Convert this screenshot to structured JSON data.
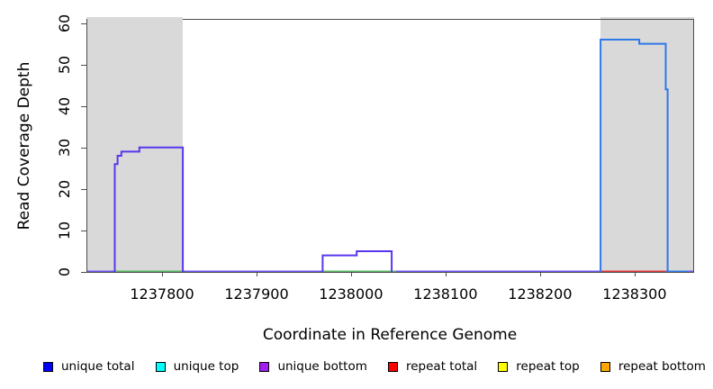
{
  "figure": {
    "background": "#ffffff",
    "frame_color": "#4d4d4d",
    "shading_color": "#d9d9d9"
  },
  "chart_data": {
    "type": "line",
    "subtype": "step-coverage",
    "title": "",
    "xlabel": "Coordinate in Reference Genome",
    "ylabel": "Read Coverage Depth",
    "xlim": [
      1237720,
      1238363
    ],
    "ylim": [
      0,
      61
    ],
    "grid": false,
    "legend_position": "bottom",
    "x_ticks": [
      {
        "coord": 1237800,
        "label": "1237800"
      },
      {
        "coord": 1237900,
        "label": "1237900"
      },
      {
        "coord": 1238000,
        "label": "1238000"
      },
      {
        "coord": 1238100,
        "label": "1238100"
      },
      {
        "coord": 1238200,
        "label": "1238200"
      },
      {
        "coord": 1238300,
        "label": "1238300"
      }
    ],
    "y_ticks": [
      {
        "value": 0,
        "label": "0"
      },
      {
        "value": 10,
        "label": "10"
      },
      {
        "value": 20,
        "label": "20"
      },
      {
        "value": 30,
        "label": "30"
      },
      {
        "value": 40,
        "label": "40"
      },
      {
        "value": 50,
        "label": "50"
      },
      {
        "value": 60,
        "label": "60"
      }
    ],
    "shaded_regions": [
      {
        "name": "repeat-region-left",
        "from": 1237720,
        "to": 1237822
      },
      {
        "name": "repeat-region-right",
        "from": 1238264,
        "to": 1238363
      }
    ],
    "series": [
      {
        "name": "unique-bottom-left-block",
        "color": "#5936ee",
        "width": 2,
        "points": [
          [
            1237750,
            0
          ],
          [
            1237750,
            26
          ],
          [
            1237753,
            26
          ],
          [
            1237753,
            28
          ],
          [
            1237757,
            28
          ],
          [
            1237757,
            29
          ],
          [
            1237776,
            29
          ],
          [
            1237776,
            30
          ],
          [
            1237822,
            30
          ],
          [
            1237822,
            0
          ]
        ]
      },
      {
        "name": "unique-bottom-middle-block",
        "color": "#5936ee",
        "width": 2,
        "points": [
          [
            1237970,
            0
          ],
          [
            1237970,
            4
          ],
          [
            1238006,
            4
          ],
          [
            1238006,
            5
          ],
          [
            1238043,
            5
          ],
          [
            1238043,
            0
          ]
        ]
      },
      {
        "name": "unique-total-right-block",
        "color": "#2e78ea",
        "width": 2,
        "points": [
          [
            1238264,
            0
          ],
          [
            1238264,
            56
          ],
          [
            1238305,
            56
          ],
          [
            1238305,
            55
          ],
          [
            1238333,
            55
          ],
          [
            1238333,
            44
          ],
          [
            1238335,
            44
          ],
          [
            1238335,
            0
          ]
        ]
      }
    ],
    "baseline_segments": [
      {
        "color": "#6a52f0",
        "from": 1237720,
        "to": 1237750
      },
      {
        "color": "#55b560",
        "from": 1237750,
        "to": 1237822
      },
      {
        "color": "#6a52f0",
        "from": 1237822,
        "to": 1237970
      },
      {
        "color": "#55b560",
        "from": 1237970,
        "to": 1238047
      },
      {
        "color": "#6a52f0",
        "from": 1238047,
        "to": 1238264
      },
      {
        "color": "#e03636",
        "from": 1238264,
        "to": 1238333
      },
      {
        "color": "#2e78ea",
        "from": 1238333,
        "to": 1238357
      },
      {
        "color": "#6a52f0",
        "from": 1238357,
        "to": 1238363
      }
    ],
    "legend": [
      {
        "label": "unique total",
        "color": "#0000ff"
      },
      {
        "label": "unique top",
        "color": "#00ffff"
      },
      {
        "label": "unique bottom",
        "color": "#a020f0"
      },
      {
        "label": "repeat total",
        "color": "#ff0000"
      },
      {
        "label": "repeat top",
        "color": "#ffff00"
      },
      {
        "label": "repeat bottom",
        "color": "#ffa500"
      }
    ]
  }
}
